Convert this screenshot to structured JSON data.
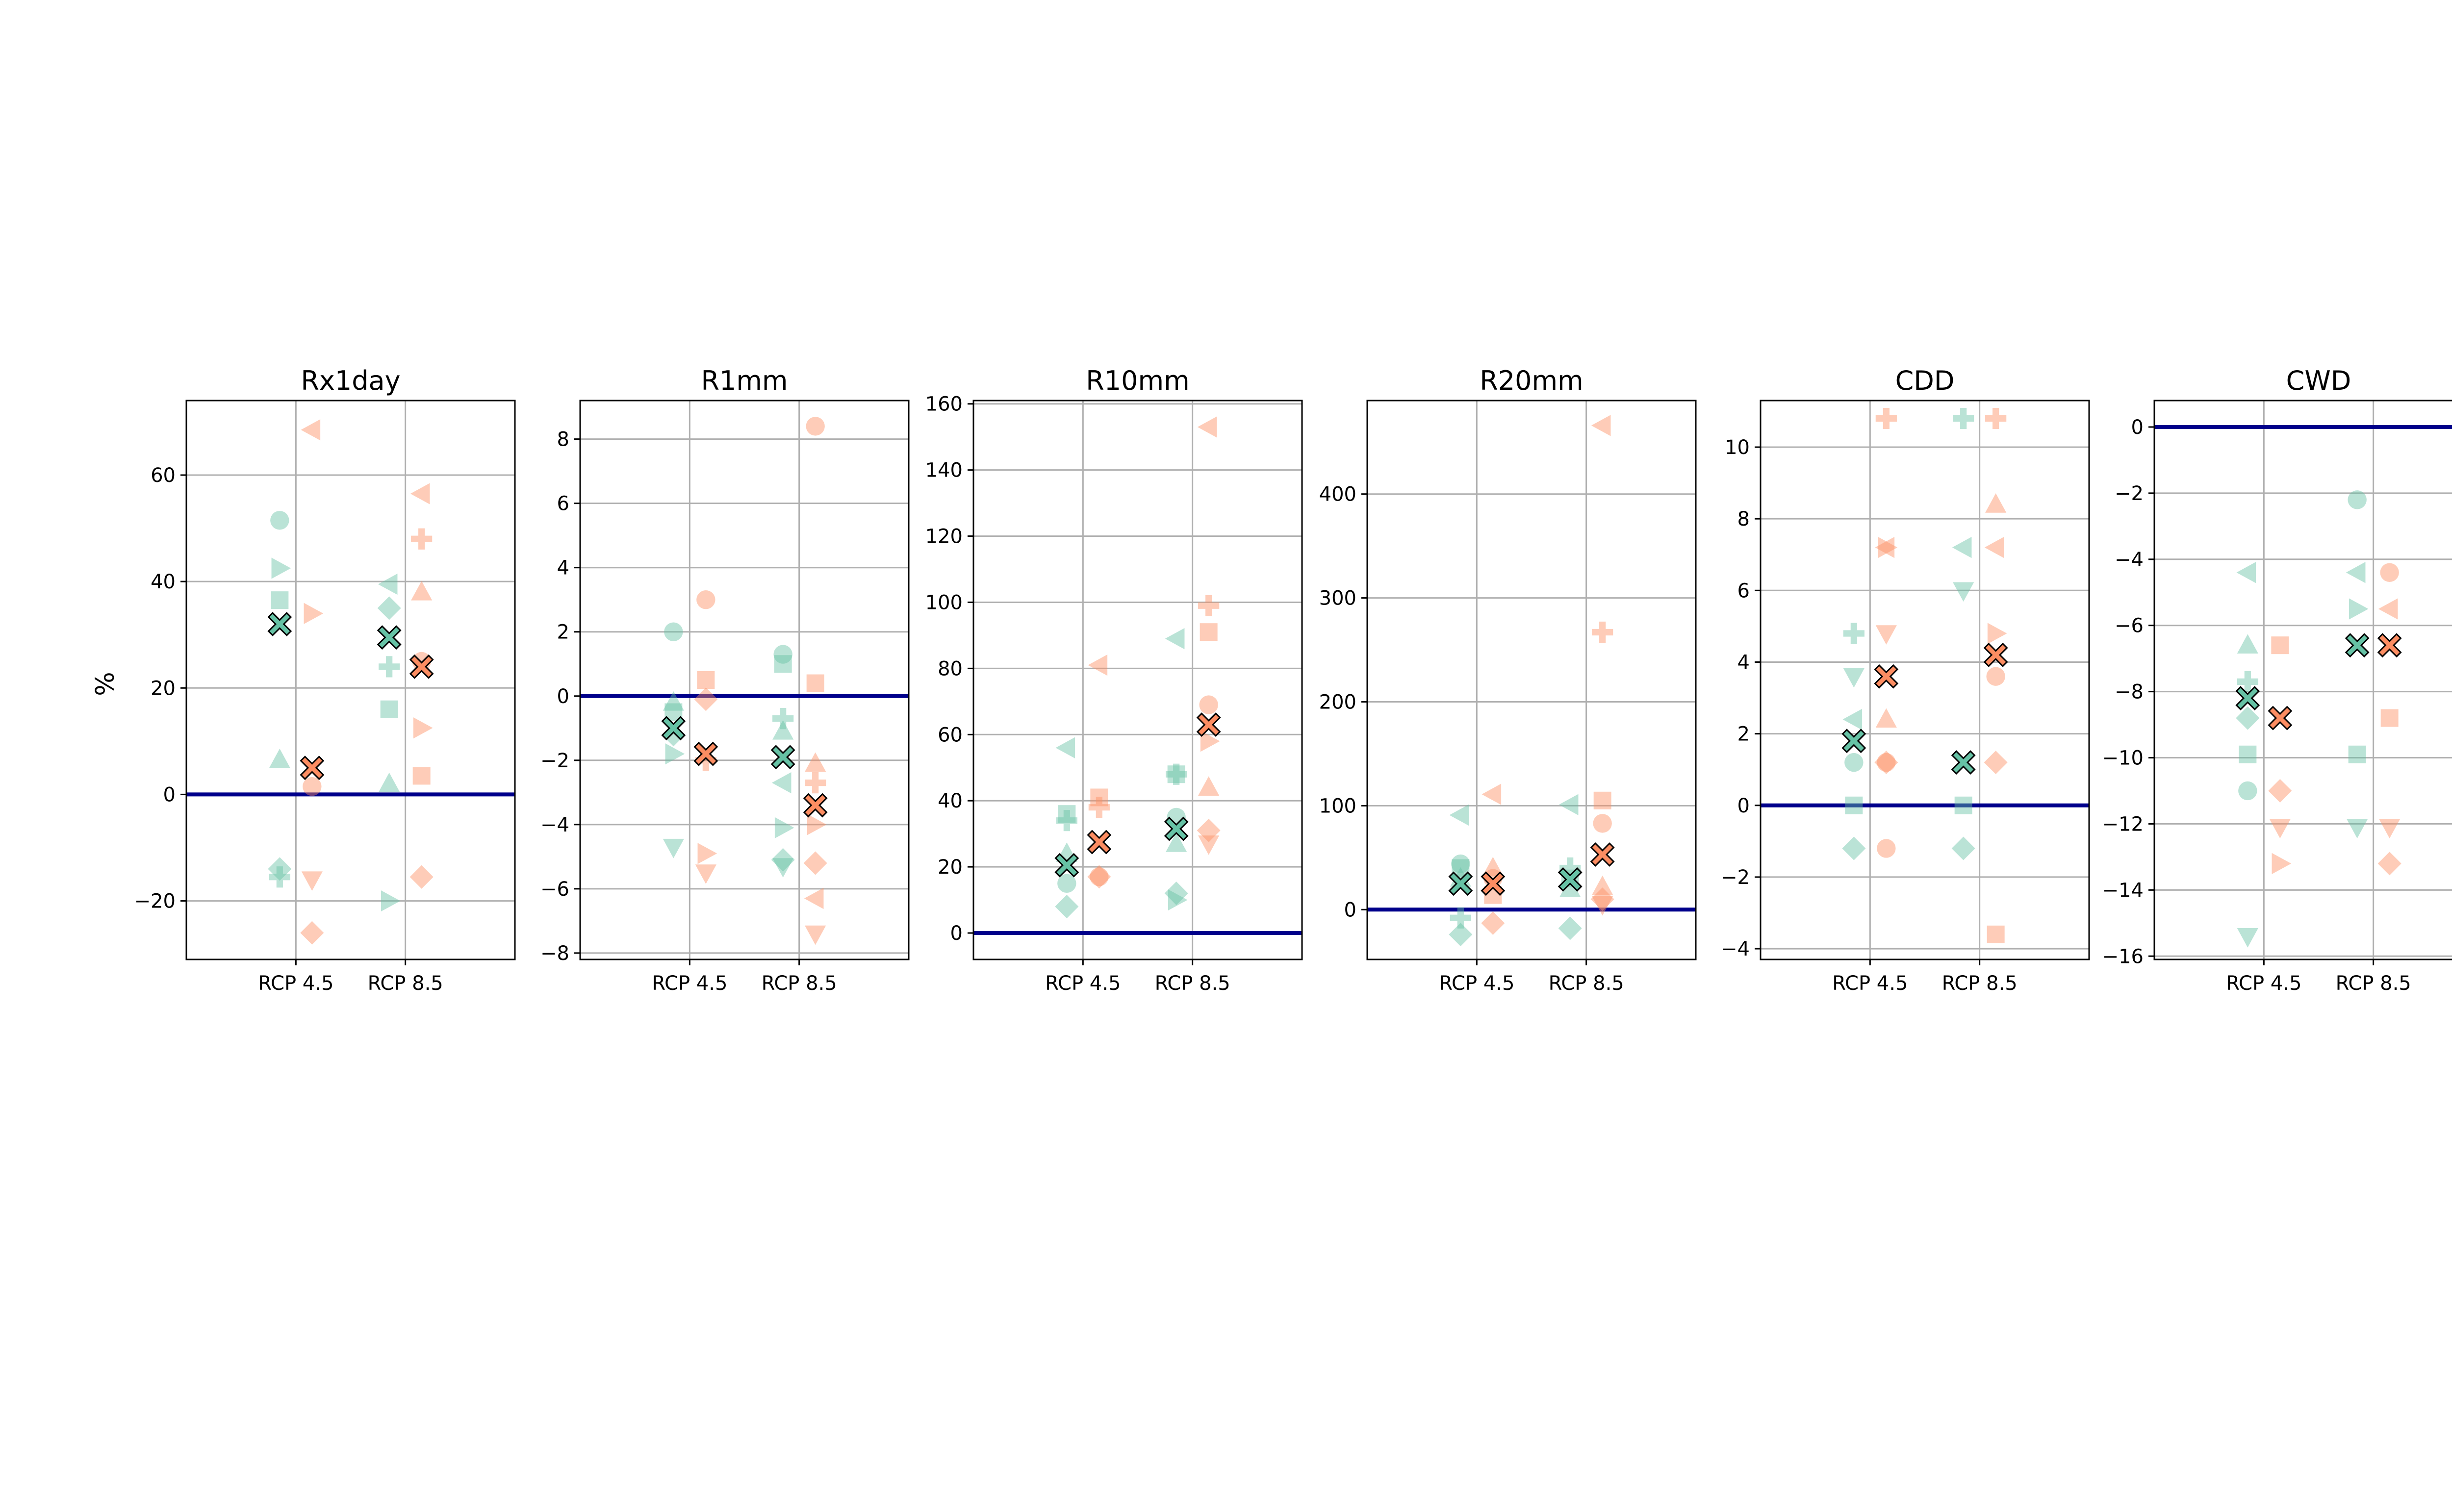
{
  "colors": {
    "rcp45": "#66c2a5",
    "rcp85": "#fc8d62",
    "zero_line": "#00008b",
    "grid": "#b0b0b0"
  },
  "ylabel": "%",
  "chart_data": [
    {
      "type": "scatter",
      "title": "Rx1day",
      "categories": [
        "RCP 4.5",
        "RCP 8.5"
      ],
      "ylim": [
        -31,
        74
      ],
      "yticks": [
        -20,
        0,
        20,
        40,
        60
      ],
      "series": [
        {
          "group": "RCP 4.5",
          "rcp": "rcp45",
          "points": [
            {
              "m": "circle",
              "y": 51.5
            },
            {
              "m": "tri_right",
              "y": 42.5
            },
            {
              "m": "square",
              "y": 36.5
            },
            {
              "m": "tri_up",
              "y": 6.5
            },
            {
              "m": "diamond",
              "y": -14
            },
            {
              "m": "plus",
              "y": -15.5
            }
          ]
        },
        {
          "group": "RCP 4.5",
          "rcp": "rcp85",
          "points": [
            {
              "m": "tri_left",
              "y": 68.5
            },
            {
              "m": "tri_right",
              "y": 34
            },
            {
              "m": "circle",
              "y": 1.5
            },
            {
              "m": "tri_down",
              "y": -16
            },
            {
              "m": "diamond",
              "y": -26
            }
          ]
        },
        {
          "group": "RCP 8.5",
          "rcp": "rcp45",
          "points": [
            {
              "m": "tri_left",
              "y": 39.5
            },
            {
              "m": "diamond",
              "y": 35
            },
            {
              "m": "plus",
              "y": 24
            },
            {
              "m": "square",
              "y": 16
            },
            {
              "m": "tri_up",
              "y": 2
            },
            {
              "m": "tri_right",
              "y": -20
            }
          ]
        },
        {
          "group": "RCP 8.5",
          "rcp": "rcp85",
          "points": [
            {
              "m": "tri_left",
              "y": 56.5
            },
            {
              "m": "plus",
              "y": 48
            },
            {
              "m": "tri_up",
              "y": 38
            },
            {
              "m": "circle",
              "y": 25
            },
            {
              "m": "tri_right",
              "y": 12.5
            },
            {
              "m": "square",
              "y": 3.5
            },
            {
              "m": "diamond",
              "y": -15.5
            }
          ]
        }
      ],
      "means": [
        {
          "group": "RCP 4.5",
          "rcp": "rcp45",
          "y": 32
        },
        {
          "group": "RCP 4.5",
          "rcp": "rcp85",
          "y": 5
        },
        {
          "group": "RCP 8.5",
          "rcp": "rcp45",
          "y": 29.5
        },
        {
          "group": "RCP 8.5",
          "rcp": "rcp85",
          "y": 24
        }
      ]
    },
    {
      "type": "scatter",
      "title": "R1mm",
      "categories": [
        "RCP 4.5",
        "RCP 8.5"
      ],
      "ylim": [
        -8.2,
        9.2
      ],
      "yticks": [
        -8,
        -6,
        -4,
        -2,
        0,
        2,
        4,
        6,
        8
      ],
      "series": [
        {
          "group": "RCP 4.5",
          "rcp": "rcp45",
          "points": [
            {
              "m": "circle",
              "y": 2
            },
            {
              "m": "square",
              "y": -0.5
            },
            {
              "m": "tri_up",
              "y": -0.2
            },
            {
              "m": "diamond",
              "y": -1.2
            },
            {
              "m": "tri_right",
              "y": -1.8
            },
            {
              "m": "tri_down",
              "y": -4.7
            }
          ]
        },
        {
          "group": "RCP 4.5",
          "rcp": "rcp85",
          "points": [
            {
              "m": "circle",
              "y": 3
            },
            {
              "m": "square",
              "y": 0.5
            },
            {
              "m": "diamond",
              "y": -0.1
            },
            {
              "m": "plus",
              "y": -2
            },
            {
              "m": "tri_right",
              "y": -4.9
            },
            {
              "m": "tri_down",
              "y": -5.5
            }
          ]
        },
        {
          "group": "RCP 8.5",
          "rcp": "rcp45",
          "points": [
            {
              "m": "circle",
              "y": 1.3
            },
            {
              "m": "square",
              "y": 1
            },
            {
              "m": "plus",
              "y": -0.7
            },
            {
              "m": "tri_up",
              "y": -1.1
            },
            {
              "m": "tri_left",
              "y": -2.7
            },
            {
              "m": "tri_right",
              "y": -4.1
            },
            {
              "m": "diamond",
              "y": -5.1
            },
            {
              "m": "tri_down",
              "y": -5.3
            }
          ]
        },
        {
          "group": "RCP 8.5",
          "rcp": "rcp85",
          "points": [
            {
              "m": "circle",
              "y": 8.4
            },
            {
              "m": "square",
              "y": 0.4
            },
            {
              "m": "tri_up",
              "y": -2.1
            },
            {
              "m": "plus",
              "y": -2.7
            },
            {
              "m": "tri_right",
              "y": -4
            },
            {
              "m": "diamond",
              "y": -5.2
            },
            {
              "m": "tri_left",
              "y": -6.3
            },
            {
              "m": "tri_down",
              "y": -7.4
            }
          ]
        }
      ],
      "means": [
        {
          "group": "RCP 4.5",
          "rcp": "rcp45",
          "y": -1
        },
        {
          "group": "RCP 4.5",
          "rcp": "rcp85",
          "y": -1.8
        },
        {
          "group": "RCP 8.5",
          "rcp": "rcp45",
          "y": -1.9
        },
        {
          "group": "RCP 8.5",
          "rcp": "rcp85",
          "y": -3.4
        }
      ]
    },
    {
      "type": "scatter",
      "title": "R10mm",
      "categories": [
        "RCP 4.5",
        "RCP 8.5"
      ],
      "ylim": [
        -8,
        161
      ],
      "yticks": [
        0,
        20,
        40,
        60,
        80,
        100,
        120,
        140,
        160
      ],
      "series": [
        {
          "group": "RCP 4.5",
          "rcp": "rcp45",
          "points": [
            {
              "m": "tri_left",
              "y": 56
            },
            {
              "m": "plus",
              "y": 34
            },
            {
              "m": "square",
              "y": 36
            },
            {
              "m": "tri_up",
              "y": 24
            },
            {
              "m": "circle",
              "y": 15
            },
            {
              "m": "diamond",
              "y": 8
            }
          ]
        },
        {
          "group": "RCP 4.5",
          "rcp": "rcp85",
          "points": [
            {
              "m": "tri_left",
              "y": 81
            },
            {
              "m": "square",
              "y": 41
            },
            {
              "m": "plus",
              "y": 38
            },
            {
              "m": "circle",
              "y": 17
            },
            {
              "m": "diamond",
              "y": 17
            }
          ]
        },
        {
          "group": "RCP 8.5",
          "rcp": "rcp45",
          "points": [
            {
              "m": "tri_left",
              "y": 89
            },
            {
              "m": "square",
              "y": 48
            },
            {
              "m": "plus",
              "y": 48
            },
            {
              "m": "circle",
              "y": 35
            },
            {
              "m": "tri_up",
              "y": 27
            },
            {
              "m": "diamond",
              "y": 12
            },
            {
              "m": "tri_right",
              "y": 10
            }
          ]
        },
        {
          "group": "RCP 8.5",
          "rcp": "rcp85",
          "points": [
            {
              "m": "tri_left",
              "y": 153
            },
            {
              "m": "plus",
              "y": 99
            },
            {
              "m": "square",
              "y": 91
            },
            {
              "m": "circle",
              "y": 69
            },
            {
              "m": "tri_right",
              "y": 58
            },
            {
              "m": "tri_up",
              "y": 44
            },
            {
              "m": "diamond",
              "y": 31
            },
            {
              "m": "tri_down",
              "y": 27
            }
          ]
        }
      ],
      "means": [
        {
          "group": "RCP 4.5",
          "rcp": "rcp45",
          "y": 20.5
        },
        {
          "group": "RCP 4.5",
          "rcp": "rcp85",
          "y": 27.5
        },
        {
          "group": "RCP 8.5",
          "rcp": "rcp45",
          "y": 31.5
        },
        {
          "group": "RCP 8.5",
          "rcp": "rcp85",
          "y": 63
        }
      ]
    },
    {
      "type": "scatter",
      "title": "R20mm",
      "categories": [
        "RCP 4.5",
        "RCP 8.5"
      ],
      "ylim": [
        -48,
        490
      ],
      "yticks": [
        0,
        100,
        200,
        300,
        400
      ],
      "series": [
        {
          "group": "RCP 4.5",
          "rcp": "rcp45",
          "points": [
            {
              "m": "tri_left",
              "y": 91
            },
            {
              "m": "circle",
              "y": 44
            },
            {
              "m": "square",
              "y": 40
            },
            {
              "m": "tri_up",
              "y": 30
            },
            {
              "m": "plus",
              "y": -8
            },
            {
              "m": "diamond",
              "y": -24
            }
          ]
        },
        {
          "group": "RCP 4.5",
          "rcp": "rcp85",
          "points": [
            {
              "m": "tri_left",
              "y": 111
            },
            {
              "m": "tri_up",
              "y": 40
            },
            {
              "m": "circle",
              "y": 30
            },
            {
              "m": "square",
              "y": 14
            },
            {
              "m": "diamond",
              "y": -13
            }
          ]
        },
        {
          "group": "RCP 8.5",
          "rcp": "rcp45",
          "points": [
            {
              "m": "tri_left",
              "y": 101
            },
            {
              "m": "plus",
              "y": 40
            },
            {
              "m": "square",
              "y": 30
            },
            {
              "m": "tri_up",
              "y": 20
            },
            {
              "m": "diamond",
              "y": -18
            }
          ]
        },
        {
          "group": "RCP 8.5",
          "rcp": "rcp85",
          "points": [
            {
              "m": "tri_left",
              "y": 466
            },
            {
              "m": "plus",
              "y": 267
            },
            {
              "m": "square",
              "y": 105
            },
            {
              "m": "circle",
              "y": 83
            },
            {
              "m": "tri_up",
              "y": 22
            },
            {
              "m": "diamond",
              "y": 10
            },
            {
              "m": "tri_down",
              "y": 5
            }
          ]
        }
      ],
      "means": [
        {
          "group": "RCP 4.5",
          "rcp": "rcp45",
          "y": 25
        },
        {
          "group": "RCP 4.5",
          "rcp": "rcp85",
          "y": 25
        },
        {
          "group": "RCP 8.5",
          "rcp": "rcp45",
          "y": 29
        },
        {
          "group": "RCP 8.5",
          "rcp": "rcp85",
          "y": 53
        }
      ]
    },
    {
      "type": "scatter",
      "title": "CDD",
      "categories": [
        "RCP 4.5",
        "RCP 8.5"
      ],
      "ylim": [
        -4.3,
        11.3
      ],
      "yticks": [
        -4,
        -2,
        0,
        2,
        4,
        6,
        8,
        10
      ],
      "series": [
        {
          "group": "RCP 4.5",
          "rcp": "rcp45",
          "points": [
            {
              "m": "plus",
              "y": 4.8
            },
            {
              "m": "tri_down",
              "y": 3.6
            },
            {
              "m": "tri_left",
              "y": 2.4
            },
            {
              "m": "circle",
              "y": 1.2
            },
            {
              "m": "square",
              "y": 0
            },
            {
              "m": "diamond",
              "y": -1.2
            }
          ]
        },
        {
          "group": "RCP 4.5",
          "rcp": "rcp85",
          "points": [
            {
              "m": "plus",
              "y": 10.8
            },
            {
              "m": "tri_left",
              "y": 7.2
            },
            {
              "m": "tri_right",
              "y": 7.2
            },
            {
              "m": "tri_down",
              "y": 4.8
            },
            {
              "m": "tri_up",
              "y": 2.4
            },
            {
              "m": "diamond",
              "y": 1.2
            },
            {
              "m": "circle",
              "y": 1.2
            },
            {
              "m": "circle",
              "y": -1.2
            }
          ]
        },
        {
          "group": "RCP 8.5",
          "rcp": "rcp45",
          "points": [
            {
              "m": "plus",
              "y": 10.8
            },
            {
              "m": "tri_left",
              "y": 7.2
            },
            {
              "m": "tri_down",
              "y": 6
            },
            {
              "m": "square",
              "y": 0
            },
            {
              "m": "diamond",
              "y": -1.2
            }
          ]
        },
        {
          "group": "RCP 8.5",
          "rcp": "rcp85",
          "points": [
            {
              "m": "plus",
              "y": 10.8
            },
            {
              "m": "tri_up",
              "y": 8.4
            },
            {
              "m": "tri_left",
              "y": 7.2
            },
            {
              "m": "tri_right",
              "y": 4.8
            },
            {
              "m": "circle",
              "y": 3.6
            },
            {
              "m": "diamond",
              "y": 1.2
            },
            {
              "m": "square",
              "y": -3.6
            }
          ]
        }
      ],
      "means": [
        {
          "group": "RCP 4.5",
          "rcp": "rcp45",
          "y": 1.8
        },
        {
          "group": "RCP 4.5",
          "rcp": "rcp85",
          "y": 3.6
        },
        {
          "group": "RCP 8.5",
          "rcp": "rcp45",
          "y": 1.2
        },
        {
          "group": "RCP 8.5",
          "rcp": "rcp85",
          "y": 4.2
        }
      ]
    },
    {
      "type": "scatter",
      "title": "CWD",
      "categories": [
        "RCP 4.5",
        "RCP 8.5"
      ],
      "ylim": [
        -16.1,
        0.8
      ],
      "yticks": [
        -16,
        -14,
        -12,
        -10,
        -8,
        -6,
        -4,
        -2,
        0
      ],
      "series": [
        {
          "group": "RCP 4.5",
          "rcp": "rcp45",
          "points": [
            {
              "m": "tri_left",
              "y": -4.4
            },
            {
              "m": "tri_up",
              "y": -6.6
            },
            {
              "m": "plus",
              "y": -7.7
            },
            {
              "m": "diamond",
              "y": -8.8
            },
            {
              "m": "square",
              "y": -9.9
            },
            {
              "m": "circle",
              "y": -11
            },
            {
              "m": "tri_down",
              "y": -15.4
            }
          ]
        },
        {
          "group": "RCP 4.5",
          "rcp": "rcp85",
          "points": [
            {
              "m": "square",
              "y": -6.6
            },
            {
              "m": "diamond",
              "y": -11
            },
            {
              "m": "tri_down",
              "y": -12.1
            },
            {
              "m": "tri_right",
              "y": -13.2
            }
          ]
        },
        {
          "group": "RCP 8.5",
          "rcp": "rcp45",
          "points": [
            {
              "m": "circle",
              "y": -2.2
            },
            {
              "m": "tri_left",
              "y": -4.4
            },
            {
              "m": "tri_right",
              "y": -5.5
            },
            {
              "m": "square",
              "y": -9.9
            },
            {
              "m": "tri_down",
              "y": -12.1
            }
          ]
        },
        {
          "group": "RCP 8.5",
          "rcp": "rcp85",
          "points": [
            {
              "m": "circle",
              "y": -4.4
            },
            {
              "m": "tri_left",
              "y": -5.5
            },
            {
              "m": "square",
              "y": -8.8
            },
            {
              "m": "tri_down",
              "y": -12.1
            },
            {
              "m": "diamond",
              "y": -13.2
            }
          ]
        }
      ],
      "means": [
        {
          "group": "RCP 4.5",
          "rcp": "rcp45",
          "y": -8.2
        },
        {
          "group": "RCP 4.5",
          "rcp": "rcp85",
          "y": -8.8
        },
        {
          "group": "RCP 8.5",
          "rcp": "rcp45",
          "y": -6.6
        },
        {
          "group": "RCP 8.5",
          "rcp": "rcp85",
          "y": -6.6
        }
      ]
    }
  ]
}
